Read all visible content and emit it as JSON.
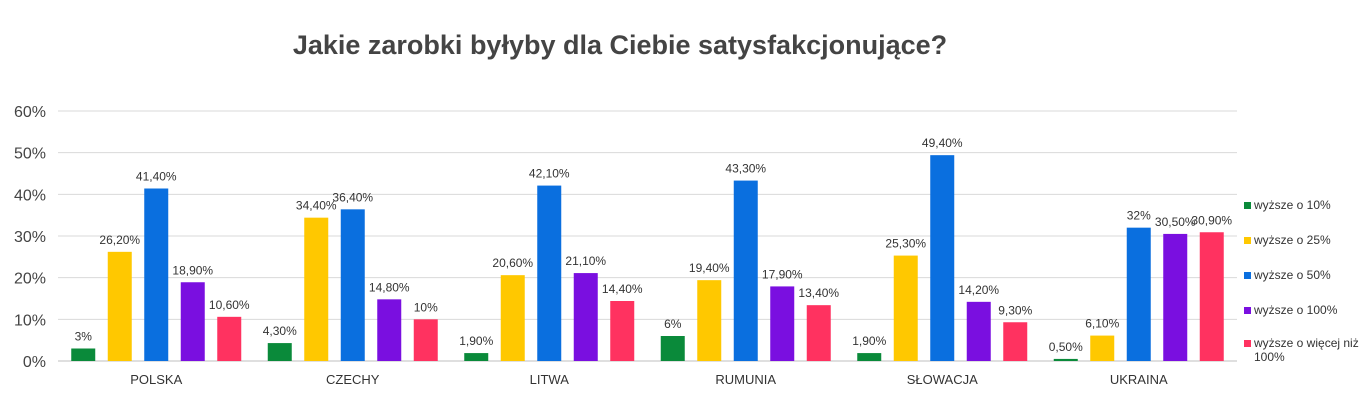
{
  "chart_data": {
    "type": "bar",
    "title": "Jakie zarobki byłyby dla Ciebie satysfakcjonujące?",
    "xlabel": "",
    "ylabel": "",
    "ylim": [
      0,
      60
    ],
    "yticks": [
      "0%",
      "10%",
      "20%",
      "30%",
      "40%",
      "50%",
      "60%"
    ],
    "grid": true,
    "legend_position": "right",
    "categories": [
      "POLSKA",
      "CZECHY",
      "LITWA",
      "RUMUNIA",
      "SŁOWACJA",
      "UKRAINA"
    ],
    "series": [
      {
        "name": "wyższe o 10%",
        "color": "#0a8a3a",
        "values": [
          3,
          4.3,
          1.9,
          6,
          1.9,
          0.5
        ],
        "labels": [
          "3%",
          "4,30%",
          "1,90%",
          "6%",
          "1,90%",
          "0,50%"
        ]
      },
      {
        "name": "wyższe o 25%",
        "color": "#ffc800",
        "values": [
          26.2,
          34.4,
          20.6,
          19.4,
          25.3,
          6.1
        ],
        "labels": [
          "26,20%",
          "34,40%",
          "20,60%",
          "19,40%",
          "25,30%",
          "6,10%"
        ]
      },
      {
        "name": "wyższe o 50%",
        "color": "#0a6fdf",
        "values": [
          41.4,
          36.4,
          42.1,
          43.3,
          49.4,
          32
        ],
        "labels": [
          "41,40%",
          "36,40%",
          "42,10%",
          "43,30%",
          "49,40%",
          "32%"
        ]
      },
      {
        "name": "wyższe o 100%",
        "color": "#7a0fe0",
        "values": [
          18.9,
          14.8,
          21.1,
          17.9,
          14.2,
          30.5
        ],
        "labels": [
          "18,90%",
          "14,80%",
          "21,10%",
          "17,90%",
          "14,20%",
          "30,50%"
        ]
      },
      {
        "name": "wyższe o więcej niż 100%",
        "color": "#ff3260",
        "values": [
          10.6,
          10,
          14.4,
          13.4,
          9.3,
          30.9
        ],
        "labels": [
          "10,60%",
          "10%",
          "14,40%",
          "13,40%",
          "9,30%",
          "30,90%"
        ]
      }
    ]
  }
}
